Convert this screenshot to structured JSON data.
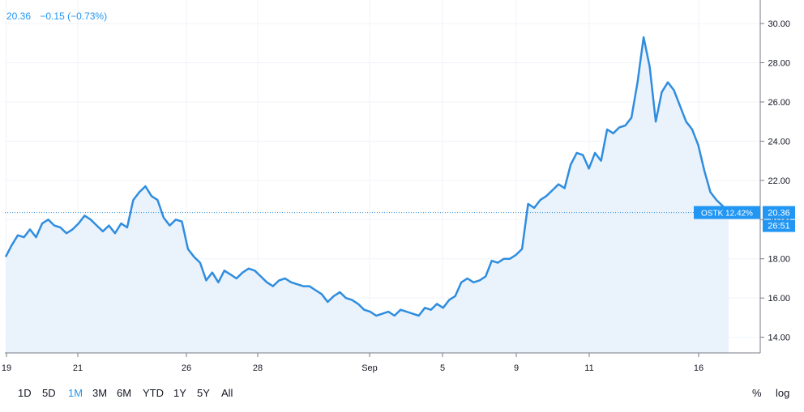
{
  "legend": {
    "last": "20.36",
    "change": "−0.15 (−0.73%)"
  },
  "price_label": {
    "ticker_pct": "OSTK 12.42%",
    "value": "20.36",
    "countdown": "26:51"
  },
  "timeframes": [
    {
      "label": "1D",
      "active": false
    },
    {
      "label": "5D",
      "active": false
    },
    {
      "label": "1M",
      "active": true
    },
    {
      "label": "3M",
      "active": false
    },
    {
      "label": "6M",
      "active": false
    },
    {
      "label": "YTD",
      "active": false
    },
    {
      "label": "1Y",
      "active": false
    },
    {
      "label": "5Y",
      "active": false
    },
    {
      "label": "All",
      "active": false
    }
  ],
  "controls": {
    "percent": "%",
    "log": "log"
  },
  "colors": {
    "line": "#2f8ddf",
    "area": "#eaf3fc",
    "accent": "#2196f3",
    "grid": "#f0f3fa"
  },
  "chart_data": {
    "type": "area",
    "x_tick_labels": [
      "19",
      "21",
      "26",
      "28",
      "Sep",
      "5",
      "9",
      "11",
      "16"
    ],
    "y_tick_labels": [
      "14.00",
      "16.00",
      "18.00",
      "20.00",
      "22.00",
      "24.00",
      "26.00",
      "28.00",
      "30.00"
    ],
    "ylim": [
      13.2,
      31.2
    ],
    "grid": true,
    "last_value": 20.36,
    "series": [
      {
        "values": [
          18.1,
          18.7,
          19.2,
          19.1,
          19.5,
          19.1,
          19.8,
          20.0,
          19.7,
          19.6,
          19.3,
          19.5,
          19.8,
          20.2,
          20.0,
          19.7,
          19.4,
          19.7,
          19.3,
          19.8,
          19.6,
          21.0,
          21.4,
          21.7,
          21.2,
          21.0,
          20.1,
          19.7,
          20.0,
          19.9,
          18.5,
          18.1,
          17.8,
          16.9,
          17.3,
          16.8,
          17.4,
          17.2,
          17.0,
          17.3,
          17.5,
          17.4,
          17.1,
          16.8,
          16.6,
          16.9,
          17.0,
          16.8,
          16.7,
          16.6,
          16.6,
          16.4,
          16.2,
          15.8,
          16.1,
          16.3,
          16.0,
          15.9,
          15.7,
          15.4,
          15.3,
          15.1,
          15.2,
          15.3,
          15.1,
          15.4,
          15.3,
          15.2,
          15.1,
          15.5,
          15.4,
          15.7,
          15.5,
          15.9,
          16.1,
          16.8,
          17.0,
          16.8,
          16.9,
          17.1,
          17.9,
          17.8,
          18.0,
          18.0,
          18.2,
          18.5,
          20.8,
          20.6,
          21.0,
          21.2,
          21.5,
          21.8,
          21.6,
          22.8,
          23.4,
          23.3,
          22.6,
          23.4,
          23.0,
          24.6,
          24.4,
          24.7,
          24.8,
          25.2,
          27.0,
          29.3,
          27.8,
          25.0,
          26.5,
          27.0,
          26.6,
          25.8,
          25.0,
          24.6,
          23.8,
          22.5,
          21.4,
          21.0,
          20.7,
          20.36
        ]
      }
    ]
  }
}
